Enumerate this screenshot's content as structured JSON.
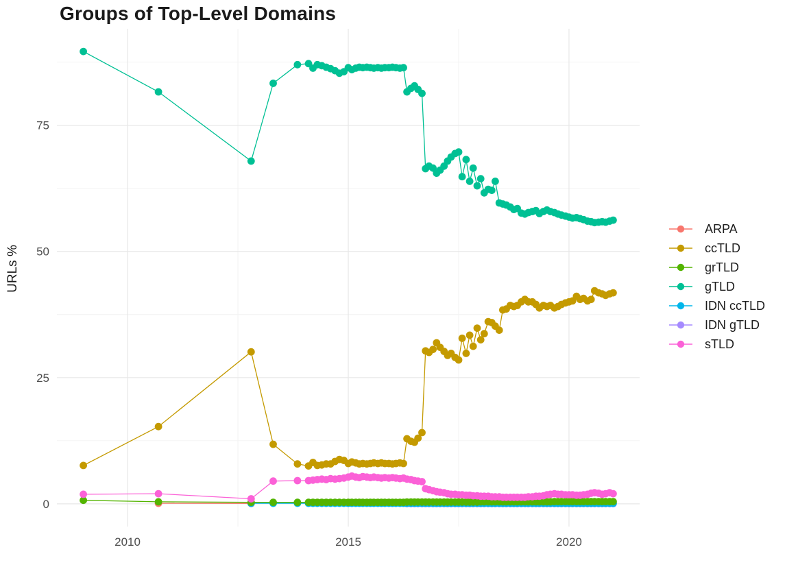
{
  "chart_data": {
    "type": "line",
    "title": "Groups of Top-Level Domains",
    "xlabel": "",
    "ylabel": "URLs %",
    "legend_position": "right",
    "grid": "major+minor",
    "xlim": [
      2008.4,
      2021.6
    ],
    "ylim": [
      -4.5,
      94.1
    ],
    "x_ticks": [
      2010,
      2015,
      2020
    ],
    "x_tick_labels": [
      "2010",
      "2015",
      "2020"
    ],
    "y_ticks": [
      0,
      25,
      50,
      75
    ],
    "y_tick_labels": [
      "0",
      "25",
      "50",
      "75"
    ],
    "x_minor_ticks": [
      2012.5,
      2017.5
    ],
    "y_minor_ticks": [
      12.5,
      37.5,
      62.5,
      87.5
    ],
    "colors": {
      "background": "#ffffff",
      "grid_major": "#e7e7e7",
      "grid_minor": "#f2f2f2",
      "axis_text": "#4e4e4e",
      "text": "#1e1e1e"
    },
    "dense_x": [
      2014.1,
      2014.2,
      2014.3,
      2014.4,
      2014.5,
      2014.6,
      2014.7,
      2014.8,
      2014.9,
      2015.0,
      2015.08,
      2015.17,
      2015.25,
      2015.33,
      2015.42,
      2015.5,
      2015.58,
      2015.67,
      2015.75,
      2015.83,
      2015.92,
      2016.0,
      2016.08,
      2016.17,
      2016.25,
      2016.33,
      2016.42,
      2016.5,
      2016.58,
      2016.67,
      2016.75,
      2016.83,
      2016.92,
      2017.0,
      2017.08,
      2017.17,
      2017.25,
      2017.33,
      2017.42,
      2017.5,
      2017.58,
      2017.67,
      2017.75,
      2017.83,
      2017.92,
      2018.0,
      2018.08,
      2018.17,
      2018.25,
      2018.33,
      2018.42,
      2018.5,
      2018.58,
      2018.67,
      2018.75,
      2018.83,
      2018.92,
      2019.0,
      2019.08,
      2019.17,
      2019.25,
      2019.33,
      2019.42,
      2019.5,
      2019.58,
      2019.67,
      2019.75,
      2019.83,
      2019.92,
      2020.0,
      2020.08,
      2020.17,
      2020.25,
      2020.33,
      2020.42,
      2020.5,
      2020.58,
      2020.67,
      2020.75,
      2020.83,
      2020.92,
      2021.0
    ],
    "series": [
      {
        "name": "ARPA",
        "color": "#F8766D",
        "sparse": [
          [
            2010.7,
            0.1
          ],
          [
            2012.8,
            0.08
          ]
        ],
        "dense_y": null
      },
      {
        "name": "ccTLD",
        "color": "#C49A00",
        "sparse": [
          [
            2009.0,
            7.6
          ],
          [
            2010.7,
            15.3
          ],
          [
            2012.8,
            30.1
          ],
          [
            2013.3,
            11.8
          ],
          [
            2013.85,
            7.9
          ]
        ],
        "dense_y": [
          7.5,
          8.2,
          7.6,
          7.7,
          7.9,
          7.9,
          8.4,
          8.8,
          8.6,
          8.0,
          8.3,
          8.1,
          7.9,
          8.0,
          7.9,
          8.0,
          8.1,
          8.0,
          8.1,
          8.0,
          8.0,
          7.9,
          8.0,
          8.1,
          8.0,
          12.9,
          12.4,
          12.2,
          13.0,
          14.1,
          30.3,
          30.0,
          30.6,
          31.9,
          31.0,
          30.2,
          29.4,
          29.8,
          29.0,
          28.5,
          32.8,
          29.8,
          33.4,
          31.2,
          34.8,
          32.5,
          33.7,
          36.1,
          35.9,
          35.2,
          34.4,
          38.4,
          38.6,
          39.3,
          39.1,
          39.3,
          40.0,
          40.5,
          40.0,
          40.0,
          39.5,
          38.8,
          39.3,
          39.1,
          39.3,
          38.8,
          39.1,
          39.5,
          39.8,
          40.0,
          40.2,
          41.1,
          40.5,
          40.7,
          40.2,
          40.5,
          42.2,
          41.8,
          41.6,
          41.3,
          41.6,
          41.8
        ]
      },
      {
        "name": "grTLD",
        "color": "#53B400",
        "sparse": [
          [
            2009.0,
            0.7
          ],
          [
            2010.7,
            0.4
          ],
          [
            2012.8,
            0.3
          ],
          [
            2013.3,
            0.3
          ],
          [
            2013.85,
            0.3
          ]
        ],
        "dense_y": [
          0.3,
          0.3,
          0.3,
          0.3,
          0.3,
          0.3,
          0.3,
          0.3,
          0.3,
          0.3,
          0.3,
          0.3,
          0.3,
          0.3,
          0.3,
          0.3,
          0.3,
          0.3,
          0.3,
          0.3,
          0.3,
          0.3,
          0.3,
          0.3,
          0.3,
          0.35,
          0.35,
          0.35,
          0.35,
          0.35,
          0.35,
          0.35,
          0.35,
          0.35,
          0.35,
          0.35,
          0.35,
          0.35,
          0.35,
          0.35,
          0.35,
          0.35,
          0.35,
          0.35,
          0.35,
          0.4,
          0.4,
          0.4,
          0.4,
          0.4,
          0.4,
          0.4,
          0.4,
          0.4,
          0.4,
          0.4,
          0.4,
          0.4,
          0.4,
          0.4,
          0.4,
          0.4,
          0.4,
          0.4,
          0.4,
          0.45,
          0.45,
          0.45,
          0.45,
          0.45,
          0.45,
          0.45,
          0.45,
          0.45,
          0.45,
          0.45,
          0.45,
          0.45,
          0.45,
          0.45,
          0.45,
          0.45
        ]
      },
      {
        "name": "gTLD",
        "color": "#00C094",
        "sparse": [
          [
            2009.0,
            89.6
          ],
          [
            2010.7,
            81.6
          ],
          [
            2012.8,
            67.9
          ],
          [
            2013.3,
            83.3
          ],
          [
            2013.85,
            87.0
          ]
        ],
        "dense_y": [
          87.2,
          86.3,
          87.0,
          86.8,
          86.5,
          86.2,
          85.8,
          85.3,
          85.6,
          86.4,
          86.0,
          86.3,
          86.5,
          86.4,
          86.5,
          86.4,
          86.3,
          86.4,
          86.3,
          86.4,
          86.4,
          86.5,
          86.4,
          86.3,
          86.4,
          81.6,
          82.3,
          82.8,
          82.1,
          81.3,
          66.4,
          66.9,
          66.5,
          65.5,
          66.1,
          66.9,
          67.9,
          68.7,
          69.4,
          69.7,
          64.8,
          68.2,
          63.9,
          66.5,
          63.0,
          64.4,
          61.6,
          62.3,
          62.1,
          63.9,
          59.6,
          59.4,
          59.2,
          58.8,
          58.3,
          58.5,
          57.6,
          57.4,
          57.7,
          57.9,
          58.1,
          57.5,
          57.9,
          58.2,
          57.9,
          57.7,
          57.4,
          57.2,
          57.0,
          56.8,
          56.6,
          56.7,
          56.5,
          56.3,
          56.0,
          55.9,
          55.7,
          55.8,
          55.9,
          55.8,
          56.0,
          56.2
        ]
      },
      {
        "name": "IDN ccTLD",
        "color": "#00B6EB",
        "sparse": [
          [
            2012.8,
            0.1
          ],
          [
            2013.3,
            0.1
          ],
          [
            2013.85,
            0.1
          ]
        ],
        "dense_y": [
          0.1,
          0.1,
          0.1,
          0.1,
          0.1,
          0.1,
          0.1,
          0.1,
          0.1,
          0.1,
          0.1,
          0.1,
          0.1,
          0.1,
          0.1,
          0.1,
          0.1,
          0.1,
          0.1,
          0.1,
          0.1,
          0.1,
          0.1,
          0.1,
          0.1,
          0.1,
          0.1,
          0.1,
          0.1,
          0.1,
          0.1,
          0.1,
          0.1,
          0.1,
          0.1,
          0.1,
          0.1,
          0.1,
          0.1,
          0.1,
          0.1,
          0.1,
          0.1,
          0.1,
          0.1,
          0.1,
          0.1,
          0.1,
          0.1,
          0.1,
          0.1,
          0.1,
          0.1,
          0.1,
          0.1,
          0.1,
          0.1,
          0.1,
          0.1,
          0.1,
          0.1,
          0.1,
          0.1,
          0.1,
          0.1,
          0.1,
          0.1,
          0.1,
          0.1,
          0.1,
          0.1,
          0.1,
          0.1,
          0.1,
          0.1,
          0.1,
          0.1,
          0.1,
          0.1,
          0.1,
          0.1,
          0.1
        ]
      },
      {
        "name": "IDN gTLD",
        "color": "#A58AFF",
        "sparse": [],
        "dense_y": [
          null,
          null,
          null,
          null,
          null,
          null,
          null,
          null,
          null,
          null,
          null,
          null,
          null,
          null,
          null,
          null,
          null,
          null,
          null,
          null,
          null,
          null,
          null,
          null,
          null,
          0.05,
          0.05,
          0.05,
          0.05,
          0.05,
          0.05,
          0.05,
          0.05,
          0.05,
          0.05,
          0.05,
          0.05,
          0.05,
          0.05,
          0.05,
          0.05,
          0.05,
          0.05,
          0.05,
          0.05,
          0.05,
          0.05,
          0.05,
          0.05,
          0.05,
          0.05,
          0.05,
          0.05,
          0.05,
          0.05,
          0.05,
          0.05,
          0.05,
          0.05,
          0.05,
          0.05,
          0.05,
          0.05,
          0.05,
          0.05,
          0.05,
          0.05,
          0.05,
          0.05,
          0.05,
          0.05,
          0.05,
          0.05,
          0.05,
          0.05,
          0.05,
          0.05,
          0.05,
          0.05,
          0.05,
          0.05,
          0.05
        ]
      },
      {
        "name": "sTLD",
        "color": "#FB61D7",
        "sparse": [
          [
            2009.0,
            1.9
          ],
          [
            2010.7,
            2.0
          ],
          [
            2012.8,
            1.0
          ],
          [
            2013.3,
            4.5
          ],
          [
            2013.85,
            4.6
          ]
        ],
        "dense_y": [
          4.6,
          4.7,
          4.8,
          4.9,
          4.8,
          5.0,
          4.9,
          5.0,
          5.1,
          5.3,
          5.5,
          5.3,
          5.2,
          5.4,
          5.3,
          5.2,
          5.3,
          5.2,
          5.1,
          5.2,
          5.1,
          5.2,
          5.1,
          5.0,
          5.1,
          4.9,
          4.8,
          4.6,
          4.5,
          4.4,
          3.0,
          2.8,
          2.6,
          2.4,
          2.3,
          2.2,
          2.0,
          1.9,
          1.9,
          1.8,
          1.8,
          1.7,
          1.7,
          1.6,
          1.6,
          1.5,
          1.5,
          1.5,
          1.4,
          1.4,
          1.4,
          1.3,
          1.3,
          1.3,
          1.3,
          1.3,
          1.3,
          1.3,
          1.4,
          1.4,
          1.5,
          1.5,
          1.6,
          1.8,
          1.9,
          2.0,
          1.9,
          1.9,
          1.8,
          1.8,
          1.8,
          1.7,
          1.7,
          1.8,
          1.9,
          2.1,
          2.2,
          2.1,
          1.9,
          2.0,
          2.2,
          2.0
        ]
      }
    ]
  }
}
